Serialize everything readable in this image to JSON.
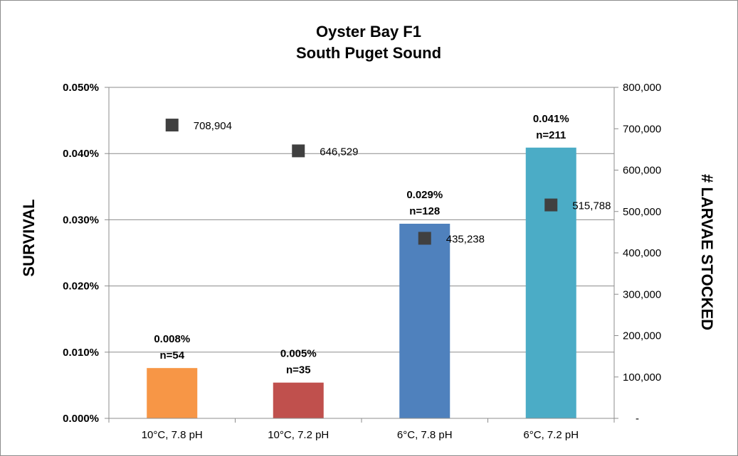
{
  "chart_data": {
    "type": "bar",
    "title": "Oyster Bay  F1",
    "subtitle": "South Puget Sound",
    "ylabel": "SURVIVAL",
    "y2label": "# LARVAE STOCKED",
    "categories": [
      "10°C, 7.8 pH",
      "10°C, 7.2 pH",
      "6°C, 7.8 pH",
      "6°C, 7.2 pH"
    ],
    "ylim": [
      0,
      0.05
    ],
    "y_ticks": [
      0,
      0.01,
      0.02,
      0.03,
      0.04,
      0.05
    ],
    "y_tick_labels": [
      "0.000%",
      "0.010%",
      "0.020%",
      "0.030%",
      "0.040%",
      "0.050%"
    ],
    "y2lim": [
      0,
      800000
    ],
    "y2_ticks": [
      0,
      100000,
      200000,
      300000,
      400000,
      500000,
      600000,
      700000,
      800000
    ],
    "y2_tick_labels": [
      "-",
      "100,000",
      "200,000",
      "300,000",
      "400,000",
      "500,000",
      "600,000",
      "700,000",
      "800,000"
    ],
    "grid": true,
    "series": [
      {
        "type": "bar",
        "axis": "left",
        "values": [
          0.0076,
          0.0054,
          0.0294,
          0.0409
        ],
        "colors": [
          "#F79646",
          "#C0504D",
          "#4F81BD",
          "#4BACC6"
        ],
        "label_percent": [
          "0.008%",
          "0.005%",
          "0.029%",
          "0.041%"
        ],
        "label_n": [
          "n=54",
          "n=35",
          "n=128",
          "n=211"
        ]
      },
      {
        "type": "scatter",
        "axis": "right",
        "values": [
          708904,
          646529,
          435238,
          515788
        ],
        "labels": [
          "708,904",
          "646,529",
          "435,238",
          "515,788"
        ],
        "color": "#404040"
      }
    ]
  }
}
